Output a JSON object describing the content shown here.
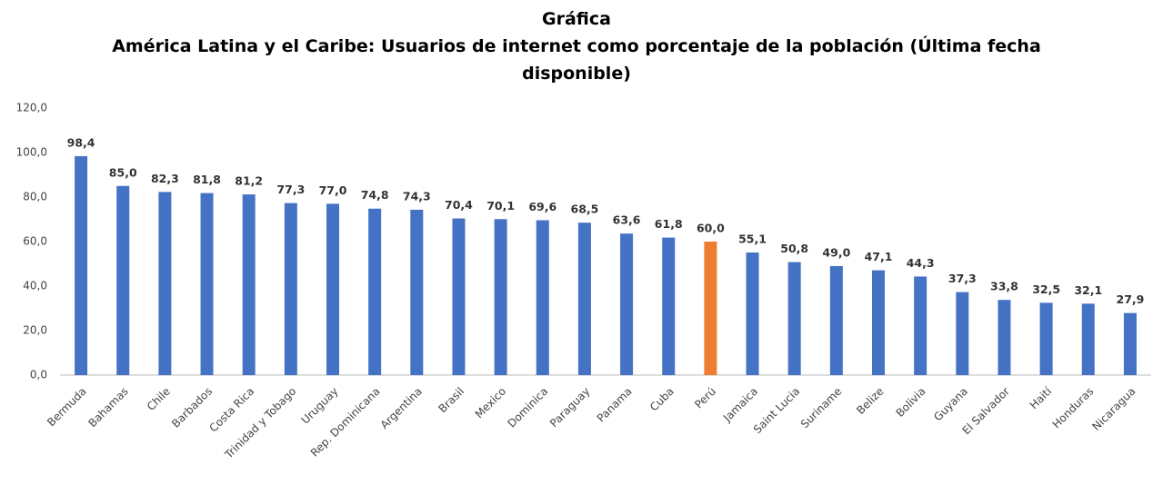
{
  "chart_data": {
    "type": "bar",
    "title": "Gráfica",
    "subtitle": "América Latina y el Caribe: Usuarios de internet como porcentaje de la población (Última fecha disponible)",
    "categories": [
      "Bermuda",
      "Bahamas",
      "Chile",
      "Barbados",
      "Costa Rica",
      "Trinidad y Tobago",
      "Uruguay",
      "Rep. Dominicana",
      "Argentina",
      "Brasil",
      "Mexico",
      "Dominica",
      "Paraguay",
      "Panama",
      "Cuba",
      "Perú",
      "Jamaica",
      "Saint Lucia",
      "Suriname",
      "Belize",
      "Bolivia",
      "Guyana",
      "El Salvador",
      "Haití",
      "Honduras",
      "Nicaragua"
    ],
    "values": [
      98.4,
      85,
      82.3,
      81.8,
      81.2,
      77.3,
      77,
      74.8,
      74.3,
      70.4,
      70.1,
      69.6,
      68.5,
      63.6,
      61.8,
      60,
      55.1,
      50.8,
      49,
      47.1,
      44.3,
      37.3,
      33.8,
      32.5,
      32.1,
      27.9
    ],
    "value_labels": [
      "98,4",
      "85,0",
      "82,3",
      "81,8",
      "81,2",
      "77,3",
      "77,0",
      "74,8",
      "74,3",
      "70,4",
      "70,1",
      "69,6",
      "68,5",
      "63,6",
      "61,8",
      "60,0",
      "55,1",
      "50,8",
      "49,0",
      "47,1",
      "44,3",
      "37,3",
      "33,8",
      "32,5",
      "32,1",
      "27,9"
    ],
    "colors": [
      "#4472c4",
      "#4472c4",
      "#4472c4",
      "#4472c4",
      "#4472c4",
      "#4472c4",
      "#4472c4",
      "#4472c4",
      "#4472c4",
      "#4472c4",
      "#4472c4",
      "#4472c4",
      "#4472c4",
      "#4472c4",
      "#4472c4",
      "#ed7d31",
      "#4472c4",
      "#4472c4",
      "#4472c4",
      "#4472c4",
      "#4472c4",
      "#4472c4",
      "#4472c4",
      "#4472c4",
      "#4472c4",
      "#4472c4"
    ],
    "ylim": [
      0,
      120
    ],
    "yticks": [
      {
        "value": 0,
        "label": "0,0"
      },
      {
        "value": 20,
        "label": "20,0"
      },
      {
        "value": 40,
        "label": "40,0"
      },
      {
        "value": 60,
        "label": "60,0"
      },
      {
        "value": 80,
        "label": "80,0"
      },
      {
        "value": 100,
        "label": "100,0"
      },
      {
        "value": 120,
        "label": "120,0"
      }
    ],
    "grid": false
  }
}
